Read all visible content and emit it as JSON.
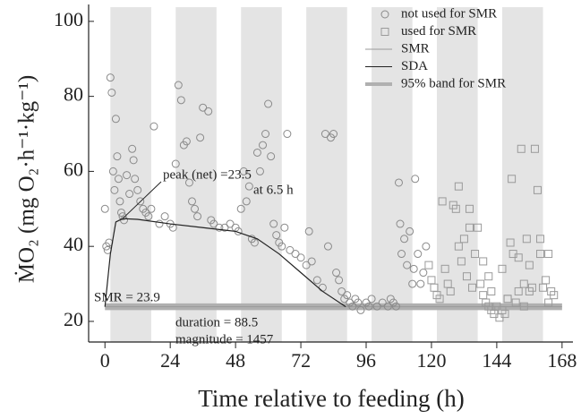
{
  "chart_data": {
    "type": "scatter",
    "xlabel": "Time relative to feeding (h)",
    "ylabel": "ṀO₂ (mg O₂·h⁻¹·kg⁻¹)",
    "xlim": [
      -6,
      172
    ],
    "ylim": [
      14.5,
      104.5
    ],
    "xticks": [
      0,
      24,
      48,
      72,
      96,
      120,
      144,
      168
    ],
    "yticks": [
      20,
      40,
      60,
      80,
      100
    ],
    "shaded_periods": [
      [
        2,
        17
      ],
      [
        26,
        41
      ],
      [
        50,
        65
      ],
      [
        74,
        89
      ],
      [
        98,
        113
      ],
      [
        122,
        137
      ],
      [
        146,
        161
      ]
    ],
    "shade_color": "#e4e4e4",
    "series": [
      {
        "name": "not used for SMR",
        "marker": "circle",
        "color": "#8a8a8a",
        "x": [
          0,
          0.5,
          1,
          1.5,
          2,
          2.5,
          3,
          3.5,
          4,
          4.5,
          5,
          5.5,
          6,
          6.5,
          7,
          8,
          9,
          10,
          10.5,
          11,
          12,
          13,
          14,
          15,
          16,
          17,
          18,
          20,
          22,
          24,
          25,
          26,
          27,
          28,
          29,
          30,
          31,
          32,
          33,
          34,
          35,
          36,
          38,
          39,
          40,
          42,
          44,
          46,
          48,
          49,
          50,
          51,
          52,
          53,
          54,
          55,
          56,
          57,
          58,
          59,
          60,
          61,
          62,
          63,
          64,
          65,
          66,
          67,
          68,
          70,
          72,
          74,
          75,
          76,
          78,
          80,
          81,
          82,
          83,
          84,
          85,
          86,
          87,
          88,
          89,
          90,
          91,
          92,
          93,
          94,
          96,
          97,
          98,
          100,
          102,
          104,
          105,
          106,
          107,
          108,
          108.5,
          109,
          110,
          111,
          112,
          113,
          113.5,
          114,
          115,
          116,
          117,
          118
        ],
        "values": [
          50,
          40,
          39,
          41,
          85,
          81,
          60,
          55,
          74,
          64,
          58,
          52,
          49,
          48,
          47,
          59,
          54,
          66,
          63,
          58,
          55,
          52,
          50,
          49,
          48,
          50,
          72,
          46,
          48,
          46,
          45,
          62,
          83,
          79,
          67,
          68,
          57,
          52,
          50,
          48,
          69,
          77,
          76,
          47,
          46,
          45,
          45,
          46,
          45,
          44,
          50,
          60,
          52,
          56,
          42,
          41,
          65,
          60,
          67,
          70,
          78,
          64,
          46,
          43,
          41,
          40,
          45,
          70,
          39,
          38,
          37,
          35,
          44,
          36,
          31,
          29,
          70,
          40,
          69,
          70,
          33,
          31,
          28,
          26,
          27,
          25,
          24,
          26,
          25,
          23,
          25,
          24,
          26,
          24,
          25,
          24,
          26,
          25,
          24,
          57,
          46,
          38,
          42,
          35,
          44,
          30,
          34,
          58,
          38,
          30,
          33,
          40
        ]
      },
      {
        "name": "used for SMR",
        "marker": "square",
        "color": "#9a9a9a",
        "x": [
          119,
          120,
          121,
          122,
          123,
          124,
          125,
          126,
          127,
          128,
          129,
          130,
          131,
          132,
          133,
          134,
          135,
          136,
          137,
          138,
          139,
          140,
          141,
          142,
          143,
          144,
          145,
          146,
          147,
          148,
          149,
          149.5,
          150,
          151,
          152,
          153,
          154,
          155,
          156,
          157,
          158,
          159,
          160,
          161,
          162,
          163,
          164,
          165,
          130,
          134,
          146,
          148,
          156,
          160,
          163,
          139,
          141,
          142,
          152,
          154
        ],
        "values": [
          35,
          31,
          29,
          27,
          26,
          52,
          34,
          30,
          28,
          51,
          50,
          40,
          36,
          42,
          32,
          50,
          29,
          38,
          45,
          30,
          27,
          25,
          24,
          23,
          22,
          24,
          21,
          23,
          22,
          26,
          41,
          58,
          38,
          25,
          28,
          66,
          30,
          42,
          35,
          29,
          66,
          55,
          38,
          29,
          31,
          38,
          28,
          27,
          56,
          45,
          34,
          26,
          28,
          42,
          25,
          36,
          32,
          28,
          37,
          24
        ]
      }
    ],
    "smr": {
      "name": "SMR",
      "value": 23.9,
      "x": [
        0,
        168
      ],
      "color": "#9a9a9a",
      "label": "SMR = 23.9"
    },
    "sda": {
      "name": "SDA",
      "color": "#222222",
      "x": [
        0,
        2,
        4,
        6.5,
        12,
        24,
        36,
        48,
        56,
        64,
        72,
        80,
        88.5
      ],
      "values": [
        23.9,
        38,
        46.5,
        47.4,
        47.2,
        46,
        45,
        44,
        42,
        38,
        33,
        28,
        23.9
      ]
    },
    "band": {
      "name": "95% band for SMR",
      "range": [
        23.0,
        24.8
      ],
      "color": "#b0b0b0"
    },
    "annotations": [
      "peak (net) =23.5",
      "at 6.5 h",
      "duration = 88.5",
      "magnitude = 1457"
    ]
  }
}
